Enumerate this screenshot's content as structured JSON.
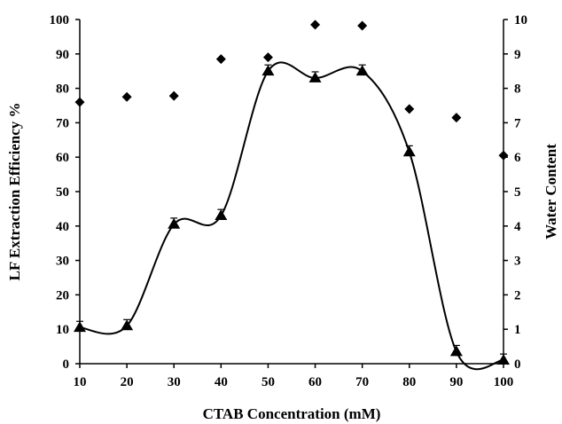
{
  "chart_data": {
    "type": "line",
    "xlabel": "CTAB Concentration (mM)",
    "ylabel_left": "LF Extraction Efficiency %",
    "ylabel_right": "Water Content",
    "xlim": [
      10,
      100
    ],
    "ylim_left": [
      0,
      100
    ],
    "ylim_right": [
      0,
      10
    ],
    "x_ticks": [
      "10",
      "20",
      "30",
      "40",
      "50",
      "60",
      "70",
      "80",
      "90",
      "100"
    ],
    "y_left_ticks": [
      "0",
      "10",
      "20",
      "30",
      "40",
      "50",
      "60",
      "70",
      "80",
      "90",
      "100"
    ],
    "y_right_ticks": [
      "0",
      "1",
      "2",
      "3",
      "4",
      "5",
      "6",
      "7",
      "8",
      "9",
      "10"
    ],
    "grid": false,
    "series": [
      {
        "axis": "left",
        "marker": "triangle",
        "smoothed": true,
        "error_bars": true,
        "x": [
          10,
          20,
          30,
          40,
          50,
          60,
          70,
          80,
          90,
          100
        ],
        "values": [
          10.5,
          11,
          40.5,
          43,
          85,
          83,
          85,
          61.5,
          3.5,
          1
        ]
      },
      {
        "axis": "right",
        "marker": "diamond",
        "smoothed": false,
        "x": [
          10,
          20,
          30,
          40,
          50,
          60,
          70,
          80,
          90,
          100
        ],
        "values": [
          7.6,
          7.75,
          7.78,
          8.85,
          8.9,
          9.85,
          9.82,
          7.4,
          7.15,
          6.05
        ]
      }
    ]
  }
}
